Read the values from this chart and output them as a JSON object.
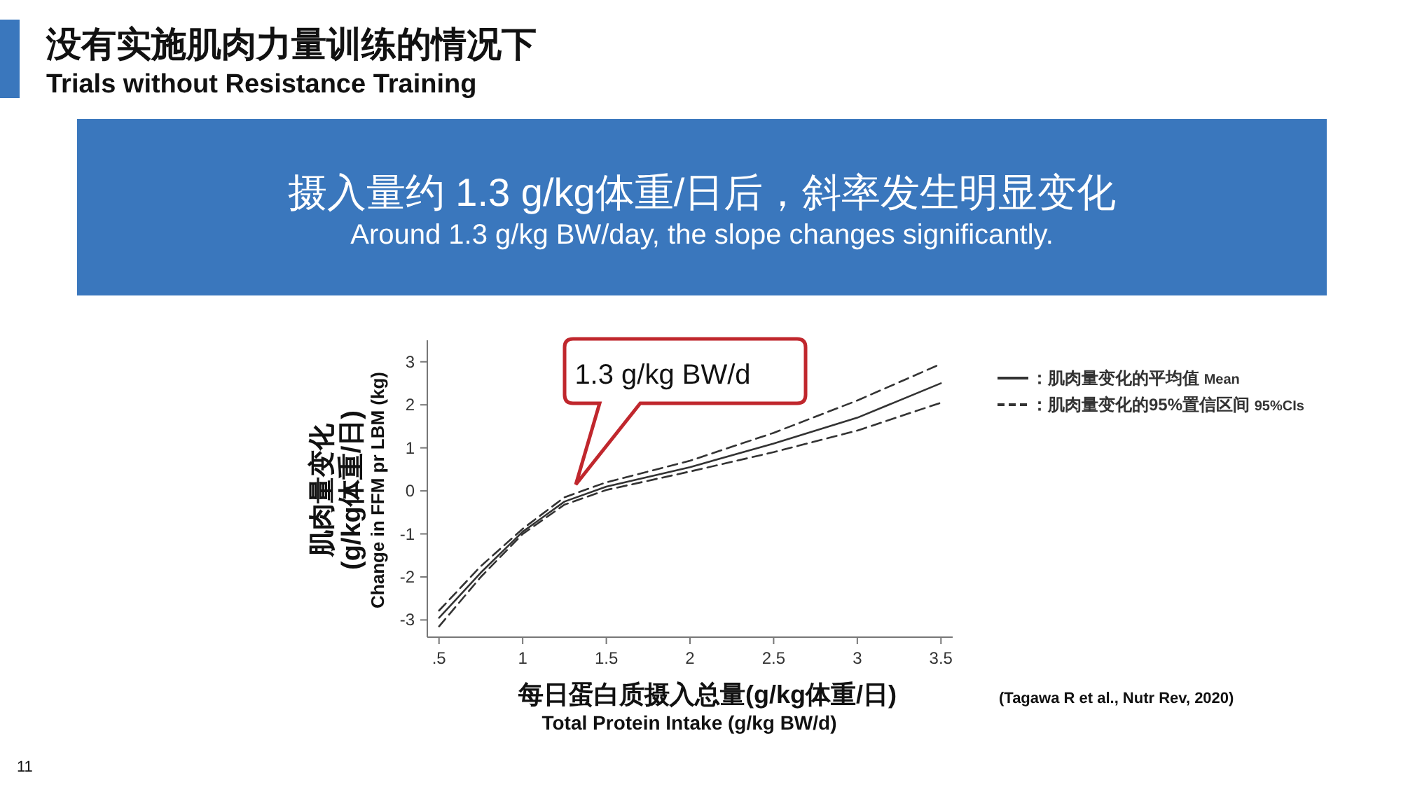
{
  "chart_data": {
    "type": "line",
    "title": "没有实施肌肉力量训练的情况下",
    "subtitle": "Trials without Resistance Training",
    "xlabel": "每日蛋白质摄入总量(g/kg体重/日)\nTotal Protein Intake (g/kg BW/d)",
    "ylabel": "肌肉量变化\n(g/kg体重/日)\nChange in FFM pr LBM (kg)",
    "annotations": [
      "摄入量约 1.3 g/kg体重/日后，斜率发生明显变化\nAround 1.3 g/kg BW/day, the slope changes significantly.",
      "1.3 g/kg BW/d",
      "(Tagawa R et al., Nutr Rev, 2020)",
      "11"
    ],
    "x": [
      0.5,
      0.75,
      1.0,
      1.25,
      1.5,
      2.0,
      2.5,
      3.0,
      3.5
    ],
    "series": [
      {
        "name": "：肌肉量变化的平均值 Mean",
        "color": "#333333",
        "line_style": "solid",
        "values": [
          -2.95,
          -1.9,
          -0.95,
          -0.25,
          0.1,
          0.55,
          1.1,
          1.7,
          2.5
        ]
      },
      {
        "name": "：肌肉量变化的95%置信区间 95%CIs",
        "color": "#333333",
        "line_style": "dashed",
        "values": [
          -2.78,
          -1.75,
          -0.88,
          -0.15,
          0.2,
          0.7,
          1.35,
          2.1,
          2.95
        ]
      },
      {
        "color": "#333333",
        "line_style": "dashed",
        "values": [
          -3.15,
          -2.0,
          -1.0,
          -0.32,
          0.02,
          0.45,
          0.9,
          1.4,
          2.05
        ]
      }
    ],
    "xlim": [
      0.43,
      3.57
    ],
    "ylim": [
      -3.4,
      3.5
    ],
    "xticks": [
      {
        "value": 0.5,
        "label": ".5"
      },
      1,
      1.5,
      2,
      2.5,
      3,
      3.5
    ],
    "yticks": [
      -3,
      -2,
      -1,
      0,
      1,
      2,
      3
    ],
    "grid": false,
    "legend": "right",
    "marker": "none"
  }
}
